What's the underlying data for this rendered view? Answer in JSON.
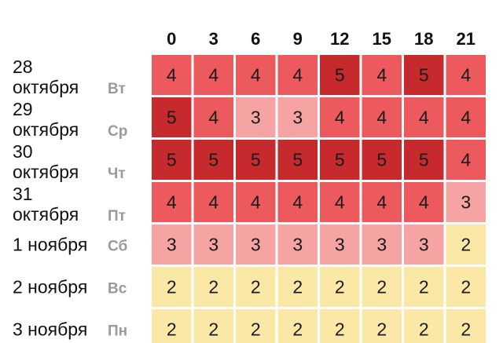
{
  "chart_data": {
    "type": "heatmap",
    "title": "",
    "xlabel": "",
    "ylabel": "",
    "columns": [
      "0",
      "3",
      "6",
      "9",
      "12",
      "15",
      "18",
      "21"
    ],
    "rows": [
      {
        "date_lines": [
          "28",
          "октября"
        ],
        "weekday": "Вт",
        "values": [
          4,
          4,
          4,
          4,
          5,
          4,
          5,
          4
        ]
      },
      {
        "date_lines": [
          "29",
          "октября"
        ],
        "weekday": "Ср",
        "values": [
          5,
          4,
          3,
          3,
          4,
          4,
          4,
          4
        ]
      },
      {
        "date_lines": [
          "30",
          "октября"
        ],
        "weekday": "Чт",
        "values": [
          5,
          5,
          5,
          5,
          5,
          5,
          5,
          4
        ]
      },
      {
        "date_lines": [
          "31",
          "октября"
        ],
        "weekday": "Пт",
        "values": [
          4,
          4,
          4,
          4,
          4,
          4,
          4,
          3
        ]
      },
      {
        "date_lines": [
          "1 ноября"
        ],
        "weekday": "Сб",
        "values": [
          3,
          3,
          3,
          3,
          3,
          3,
          3,
          2
        ]
      },
      {
        "date_lines": [
          "2 ноября"
        ],
        "weekday": "Вс",
        "values": [
          2,
          2,
          2,
          2,
          2,
          2,
          2,
          2
        ]
      },
      {
        "date_lines": [
          "3 ноября"
        ],
        "weekday": "Пн",
        "values": [
          2,
          2,
          2,
          2,
          2,
          2,
          2,
          2
        ]
      }
    ],
    "color_scale": {
      "2": "#fbe8a6",
      "3": "#f6a3a3",
      "4": "#ec5a5e",
      "5": "#c62a2d"
    }
  }
}
